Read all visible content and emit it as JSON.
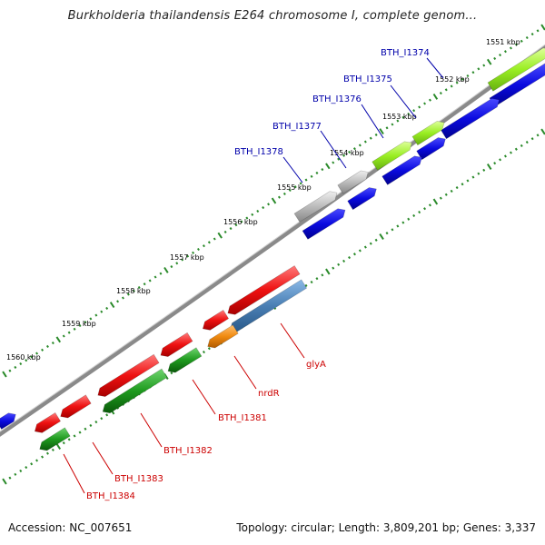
{
  "title": "Burkholderia thailandensis E264 chromosome I, complete genom...",
  "footer": {
    "accession": "Accession: NC_007651",
    "topology": "Topology: circular; Length: 3,809,201 bp; Genes: 3,337"
  },
  "kbp_ticks": [
    "1551 kbp",
    "1552 kbp",
    "1553 kbp",
    "1554 kbp",
    "1555 kbp",
    "1556 kbp",
    "1557 kbp",
    "1558 kbp",
    "1559 kbp",
    "1560 kbp"
  ],
  "forward_gene_labels": [
    "BTH_I1374",
    "BTH_I1375",
    "BTH_I1376",
    "BTH_I1377",
    "BTH_I1378"
  ],
  "reverse_gene_labels": [
    "glyA",
    "nrdR",
    "BTH_I1381",
    "BTH_I1382",
    "BTH_I1383",
    "BTH_I1384"
  ],
  "colors": {
    "forward_label": "#0000aa",
    "reverse_label": "#cc0000",
    "cds_blue": "#0a0adf",
    "gene_lime": "#99ee22",
    "gene_grey": "#b8b8b8",
    "gene_red": "#ee1111",
    "gene_green": "#1e9a1e",
    "gene_steel": "#4a7fb4",
    "gene_orange": "#f08a10",
    "backbone": "#8a8a8a",
    "tick_dots": "#2a8a2a"
  }
}
